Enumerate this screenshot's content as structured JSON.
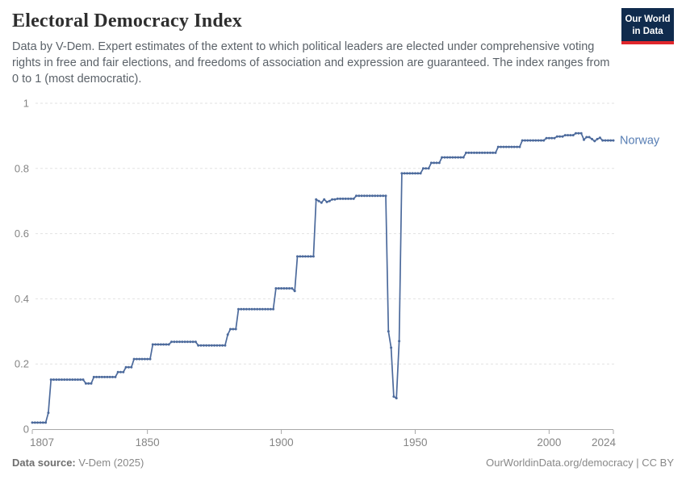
{
  "header": {
    "title": "Electoral Democracy Index",
    "subtitle": "Data by V-Dem. Expert estimates of the extent to which political leaders are elected under comprehensive voting rights in free and fair elections, and freedoms of association and expression are guaranteed. The index ranges from 0 to 1 (most democratic).",
    "logo": {
      "line1": "Our World",
      "line2": "in Data",
      "bg_color": "#102b4d",
      "accent_color": "#e0262c",
      "text_color": "#ffffff"
    }
  },
  "footer": {
    "source_label": "Data source:",
    "source_value": "V-Dem (2025)",
    "credit": "OurWorldinData.org/democracy | CC BY"
  },
  "chart_data": {
    "type": "line",
    "title": "Electoral Democracy Index",
    "xlabel": "",
    "ylabel": "",
    "x_range": [
      1807,
      2024
    ],
    "ylim": [
      0,
      1
    ],
    "x_ticks": [
      1807,
      1850,
      1900,
      1950,
      2000,
      2024
    ],
    "y_ticks": [
      0,
      0.2,
      0.4,
      0.6,
      0.8,
      1
    ],
    "grid": "horizontal-dashed",
    "legend_position": "end-of-line",
    "colors": {
      "line": "#4c6a9c",
      "series_label": "#577eb4",
      "grid": "#e2e2e2",
      "axis": "#a8a8a8",
      "tick_label": "#858585"
    },
    "series": [
      {
        "name": "Norway",
        "segments_year_from_to_value": [
          [
            1807,
            1812,
            0.02
          ],
          [
            1813,
            1813,
            0.05
          ],
          [
            1814,
            1826,
            0.152
          ],
          [
            1827,
            1829,
            0.14
          ],
          [
            1830,
            1838,
            0.16
          ],
          [
            1839,
            1841,
            0.175
          ],
          [
            1842,
            1844,
            0.19
          ],
          [
            1845,
            1851,
            0.215
          ],
          [
            1852,
            1858,
            0.26
          ],
          [
            1859,
            1868,
            0.268
          ],
          [
            1869,
            1879,
            0.257
          ],
          [
            1880,
            1880,
            0.29
          ],
          [
            1881,
            1883,
            0.307
          ],
          [
            1884,
            1897,
            0.368
          ],
          [
            1898,
            1904,
            0.432
          ],
          [
            1905,
            1905,
            0.424
          ],
          [
            1906,
            1912,
            0.53
          ],
          [
            1913,
            1913,
            0.705
          ],
          [
            1914,
            1914,
            0.7
          ],
          [
            1915,
            1915,
            0.695
          ],
          [
            1916,
            1916,
            0.705
          ],
          [
            1917,
            1917,
            0.697
          ],
          [
            1918,
            1918,
            0.7
          ],
          [
            1919,
            1920,
            0.705
          ],
          [
            1921,
            1927,
            0.707
          ],
          [
            1928,
            1939,
            0.716
          ],
          [
            1940,
            1940,
            0.3
          ],
          [
            1941,
            1941,
            0.25
          ],
          [
            1942,
            1942,
            0.1
          ],
          [
            1943,
            1943,
            0.095
          ],
          [
            1944,
            1944,
            0.27
          ],
          [
            1945,
            1952,
            0.785
          ],
          [
            1953,
            1955,
            0.8
          ],
          [
            1956,
            1959,
            0.817
          ],
          [
            1960,
            1968,
            0.834
          ],
          [
            1969,
            1980,
            0.848
          ],
          [
            1981,
            1989,
            0.866
          ],
          [
            1990,
            1998,
            0.886
          ],
          [
            1999,
            2002,
            0.893
          ],
          [
            2003,
            2005,
            0.898
          ],
          [
            2006,
            2009,
            0.902
          ],
          [
            2010,
            2012,
            0.908
          ],
          [
            2013,
            2013,
            0.888
          ],
          [
            2014,
            2015,
            0.896
          ],
          [
            2016,
            2016,
            0.89
          ],
          [
            2017,
            2017,
            0.884
          ],
          [
            2018,
            2018,
            0.89
          ],
          [
            2019,
            2019,
            0.894
          ],
          [
            2020,
            2024,
            0.886
          ]
        ]
      }
    ]
  }
}
